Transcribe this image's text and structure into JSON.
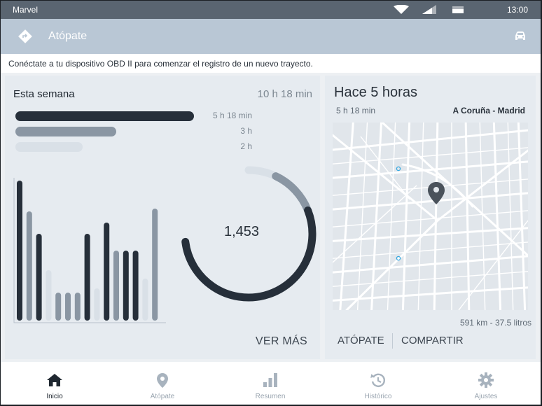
{
  "statusbar": {
    "carrier": "Marvel",
    "time": "13:00",
    "icons": [
      "wifi-icon",
      "signal-icon",
      "battery-icon"
    ]
  },
  "appbar": {
    "title": "Atópate",
    "logo_icon": "route-diamond-icon",
    "action_icon": "car-icon"
  },
  "notice": "Conéctate a tu dispositivo OBD II para comenzar el registro de un nuevo trayecto.",
  "week": {
    "title": "Esta semana",
    "total": "10 h 18 min",
    "bars": [
      {
        "label": "5 h 18 min",
        "hours": 5.3,
        "color": "#262f3a"
      },
      {
        "label": "3 h",
        "hours": 3,
        "color": "#8a96a3"
      },
      {
        "label": "2 h",
        "hours": 2,
        "color": "#d9e0e7"
      }
    ],
    "score": "1,453",
    "more_label": "VER MÁS"
  },
  "chart_data": [
    {
      "type": "bar",
      "series": [
        {
          "name": "",
          "values": [
            1.0,
            0.78,
            0.62,
            0.36,
            0.2,
            0.2,
            0.2,
            0.62,
            0.23,
            0.7,
            0.5,
            0.5,
            0.5,
            0.3,
            0.8
          ]
        }
      ],
      "colors": [
        "#262f3a",
        "#8a96a3",
        "#262f3a",
        "#d9e0e7",
        "#8a96a3",
        "#8a96a3",
        "#8a96a3",
        "#262f3a",
        "#d9e0e7",
        "#262f3a",
        "#8a96a3",
        "#262f3a",
        "#262f3a",
        "#d9e0e7",
        "#8a96a3"
      ],
      "ylim": [
        0,
        1
      ],
      "grid": false
    },
    {
      "type": "pie",
      "center_label": "1,453",
      "segments": [
        {
          "value": 0.07,
          "color": "#d9e0e7"
        },
        {
          "value": 0.12,
          "color": "#8a96a3"
        },
        {
          "value": 0.54,
          "color": "#262f3a"
        }
      ]
    }
  ],
  "trip": {
    "title": "Hace 5 horas",
    "duration": "5 h 18 min",
    "route": "A Coruña - Madrid",
    "stats": "591 km - 37.5 litros",
    "actions": [
      "ATÓPATE",
      "COMPARTIR"
    ],
    "map_icon": "map-pin-icon"
  },
  "nav": [
    {
      "label": "Inicio",
      "icon": "home-icon",
      "active": true
    },
    {
      "label": "Atópate",
      "icon": "location-pin-icon",
      "active": false
    },
    {
      "label": "Resumen",
      "icon": "bar-chart-icon",
      "active": false
    },
    {
      "label": "Histórico",
      "icon": "history-icon",
      "active": false
    },
    {
      "label": "Ajustes",
      "icon": "gear-icon",
      "active": false
    }
  ],
  "colors": {
    "primary": "#b9c7d5",
    "dark": "#262f3a",
    "mid": "#8a96a3",
    "light": "#d9e0e7"
  }
}
